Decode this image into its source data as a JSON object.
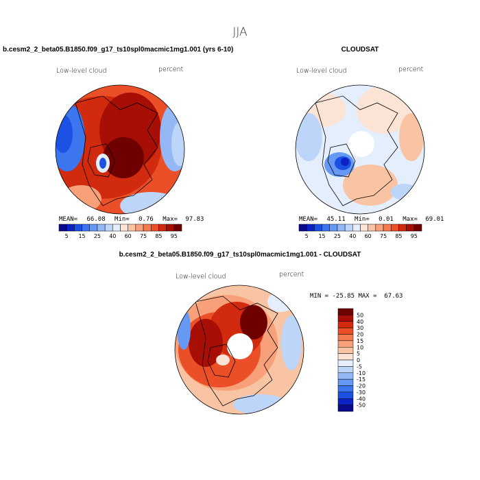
{
  "page": {
    "season": "JJA"
  },
  "panels": [
    {
      "id": "model",
      "title": "b.cesm2_2_beta05.B1850.f09_g17_ts10spl0macmic1mg1.001 (yrs 6-10)",
      "field": "Low-level cloud",
      "units": "percent",
      "stats": {
        "mean_label": "MEAN=",
        "mean": "66.08",
        "min_label": "Min=",
        "min": "0.76",
        "max_label": "Max=",
        "max": "97.83"
      }
    },
    {
      "id": "obs",
      "title": "CLOUDSAT",
      "field": "Low-level cloud",
      "units": "percent",
      "stats": {
        "mean_label": "MEAN=",
        "mean": "45.11",
        "min_label": "Min=",
        "min": "0.01",
        "max_label": "Max=",
        "max": "69.01"
      }
    },
    {
      "id": "diff",
      "title": "b.cesm2_2_beta05.B1850.f09_g17_ts10spl0macmic1mg1.001 - CLOUDSAT",
      "field": "Low-level cloud",
      "units": "percent",
      "minmax": "MIN = -25.85 MAX =  67.63"
    }
  ],
  "chart_data": [
    {
      "type": "heatmap",
      "projection": "polar stereographic (north pole)",
      "title": "b.cesm2_2_beta05.B1850.f09_g17_ts10spl0macmic1mg1.001 (yrs 6-10)",
      "variable": "Low-level cloud",
      "units": "percent",
      "mean": 66.08,
      "min": 0.76,
      "max": 97.83,
      "colorbar": {
        "orientation": "horizontal",
        "levels": [
          5,
          10,
          15,
          20,
          25,
          30,
          40,
          50,
          60,
          70,
          75,
          80,
          85,
          90,
          95
        ],
        "tick_labels": [
          "5",
          "15",
          "25",
          "40",
          "60",
          "75",
          "85",
          "95"
        ],
        "colors": [
          "#0a0a8c",
          "#0b23c4",
          "#1c52e4",
          "#3b76ef",
          "#6699f3",
          "#94b8f6",
          "#bed5fa",
          "#e4eefc",
          "#fbe4d6",
          "#f9c4a4",
          "#f7a079",
          "#f27a4d",
          "#ea4f27",
          "#d12a0e",
          "#a70e05",
          "#6e0000"
        ]
      }
    },
    {
      "type": "heatmap",
      "projection": "polar stereographic (north pole)",
      "title": "CLOUDSAT",
      "variable": "Low-level cloud",
      "units": "percent",
      "mean": 45.11,
      "min": 0.01,
      "max": 69.01,
      "colorbar": {
        "orientation": "horizontal",
        "levels": [
          5,
          10,
          15,
          20,
          25,
          30,
          40,
          50,
          60,
          70,
          75,
          80,
          85,
          90,
          95
        ],
        "tick_labels": [
          "5",
          "15",
          "25",
          "40",
          "60",
          "75",
          "85",
          "95"
        ],
        "colors": [
          "#0a0a8c",
          "#0b23c4",
          "#1c52e4",
          "#3b76ef",
          "#6699f3",
          "#94b8f6",
          "#bed5fa",
          "#e4eefc",
          "#fbe4d6",
          "#f9c4a4",
          "#f7a079",
          "#f27a4d",
          "#ea4f27",
          "#d12a0e",
          "#a70e05",
          "#6e0000"
        ]
      }
    },
    {
      "type": "heatmap",
      "projection": "polar stereographic (north pole)",
      "title": "b.cesm2_2_beta05.B1850.f09_g17_ts10spl0macmic1mg1.001 - CLOUDSAT",
      "variable": "Low-level cloud",
      "units": "percent",
      "min": -25.85,
      "max": 67.63,
      "colorbar": {
        "orientation": "vertical",
        "levels": [
          -50,
          -40,
          -30,
          -20,
          -15,
          -10,
          -5,
          0,
          5,
          10,
          15,
          20,
          30,
          40,
          50
        ],
        "tick_labels": [
          "50",
          "40",
          "30",
          "20",
          "15",
          "10",
          "5",
          "0",
          "-5",
          "-10",
          "-15",
          "-20",
          "-30",
          "-40",
          "-50"
        ],
        "colors": [
          "#0a0a8c",
          "#0b23c4",
          "#1c52e4",
          "#3b76ef",
          "#6699f3",
          "#94b8f6",
          "#bed5fa",
          "#e4eefc",
          "#fbe4d6",
          "#f9c4a4",
          "#f7a079",
          "#f27a4d",
          "#ea4f27",
          "#d12a0e",
          "#a70e05",
          "#6e0000"
        ]
      }
    }
  ]
}
